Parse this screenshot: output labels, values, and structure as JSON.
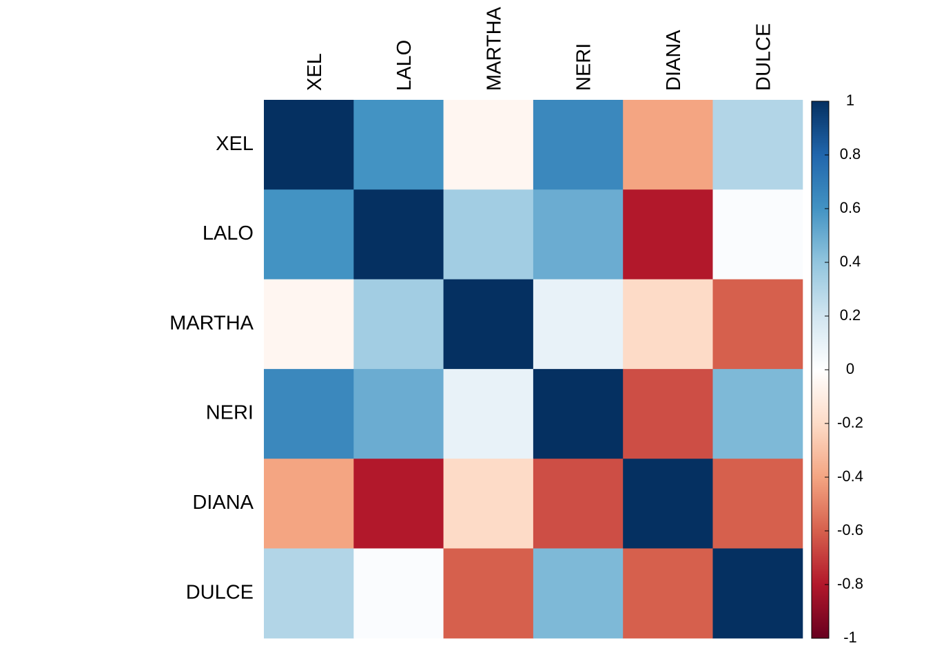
{
  "chart_data": {
    "type": "heatmap",
    "x_categories": [
      "XEL",
      "LALO",
      "MARTHA",
      "NERI",
      "DIANA",
      "DULCE"
    ],
    "y_categories": [
      "XEL",
      "LALO",
      "MARTHA",
      "NERI",
      "DIANA",
      "DULCE"
    ],
    "values": [
      [
        1,
        0.6,
        -0.05,
        0.65,
        -0.4,
        0.3
      ],
      [
        0.6,
        1,
        0.35,
        0.5,
        -0.8,
        0.02
      ],
      [
        -0.05,
        0.35,
        1,
        0.1,
        -0.2,
        -0.6
      ],
      [
        0.65,
        0.5,
        0.1,
        1,
        -0.65,
        0.45
      ],
      [
        -0.4,
        -0.8,
        -0.2,
        -0.65,
        1,
        -0.6
      ],
      [
        0.3,
        0.02,
        -0.6,
        0.45,
        -0.6,
        1
      ]
    ],
    "colors": [
      "#67001F",
      "#B2182B",
      "#D6604D",
      "#F4A582",
      "#FDDBC7",
      "#FFFFFF",
      "#D1E5F0",
      "#92C5DE",
      "#4393C3",
      "#2166AC",
      "#053061"
    ],
    "zlim": [
      -1,
      1
    ],
    "zticks": [
      -1,
      -0.8,
      -0.6,
      -0.4,
      -0.2,
      0,
      0.2,
      0.4,
      0.6,
      0.8,
      1
    ]
  }
}
